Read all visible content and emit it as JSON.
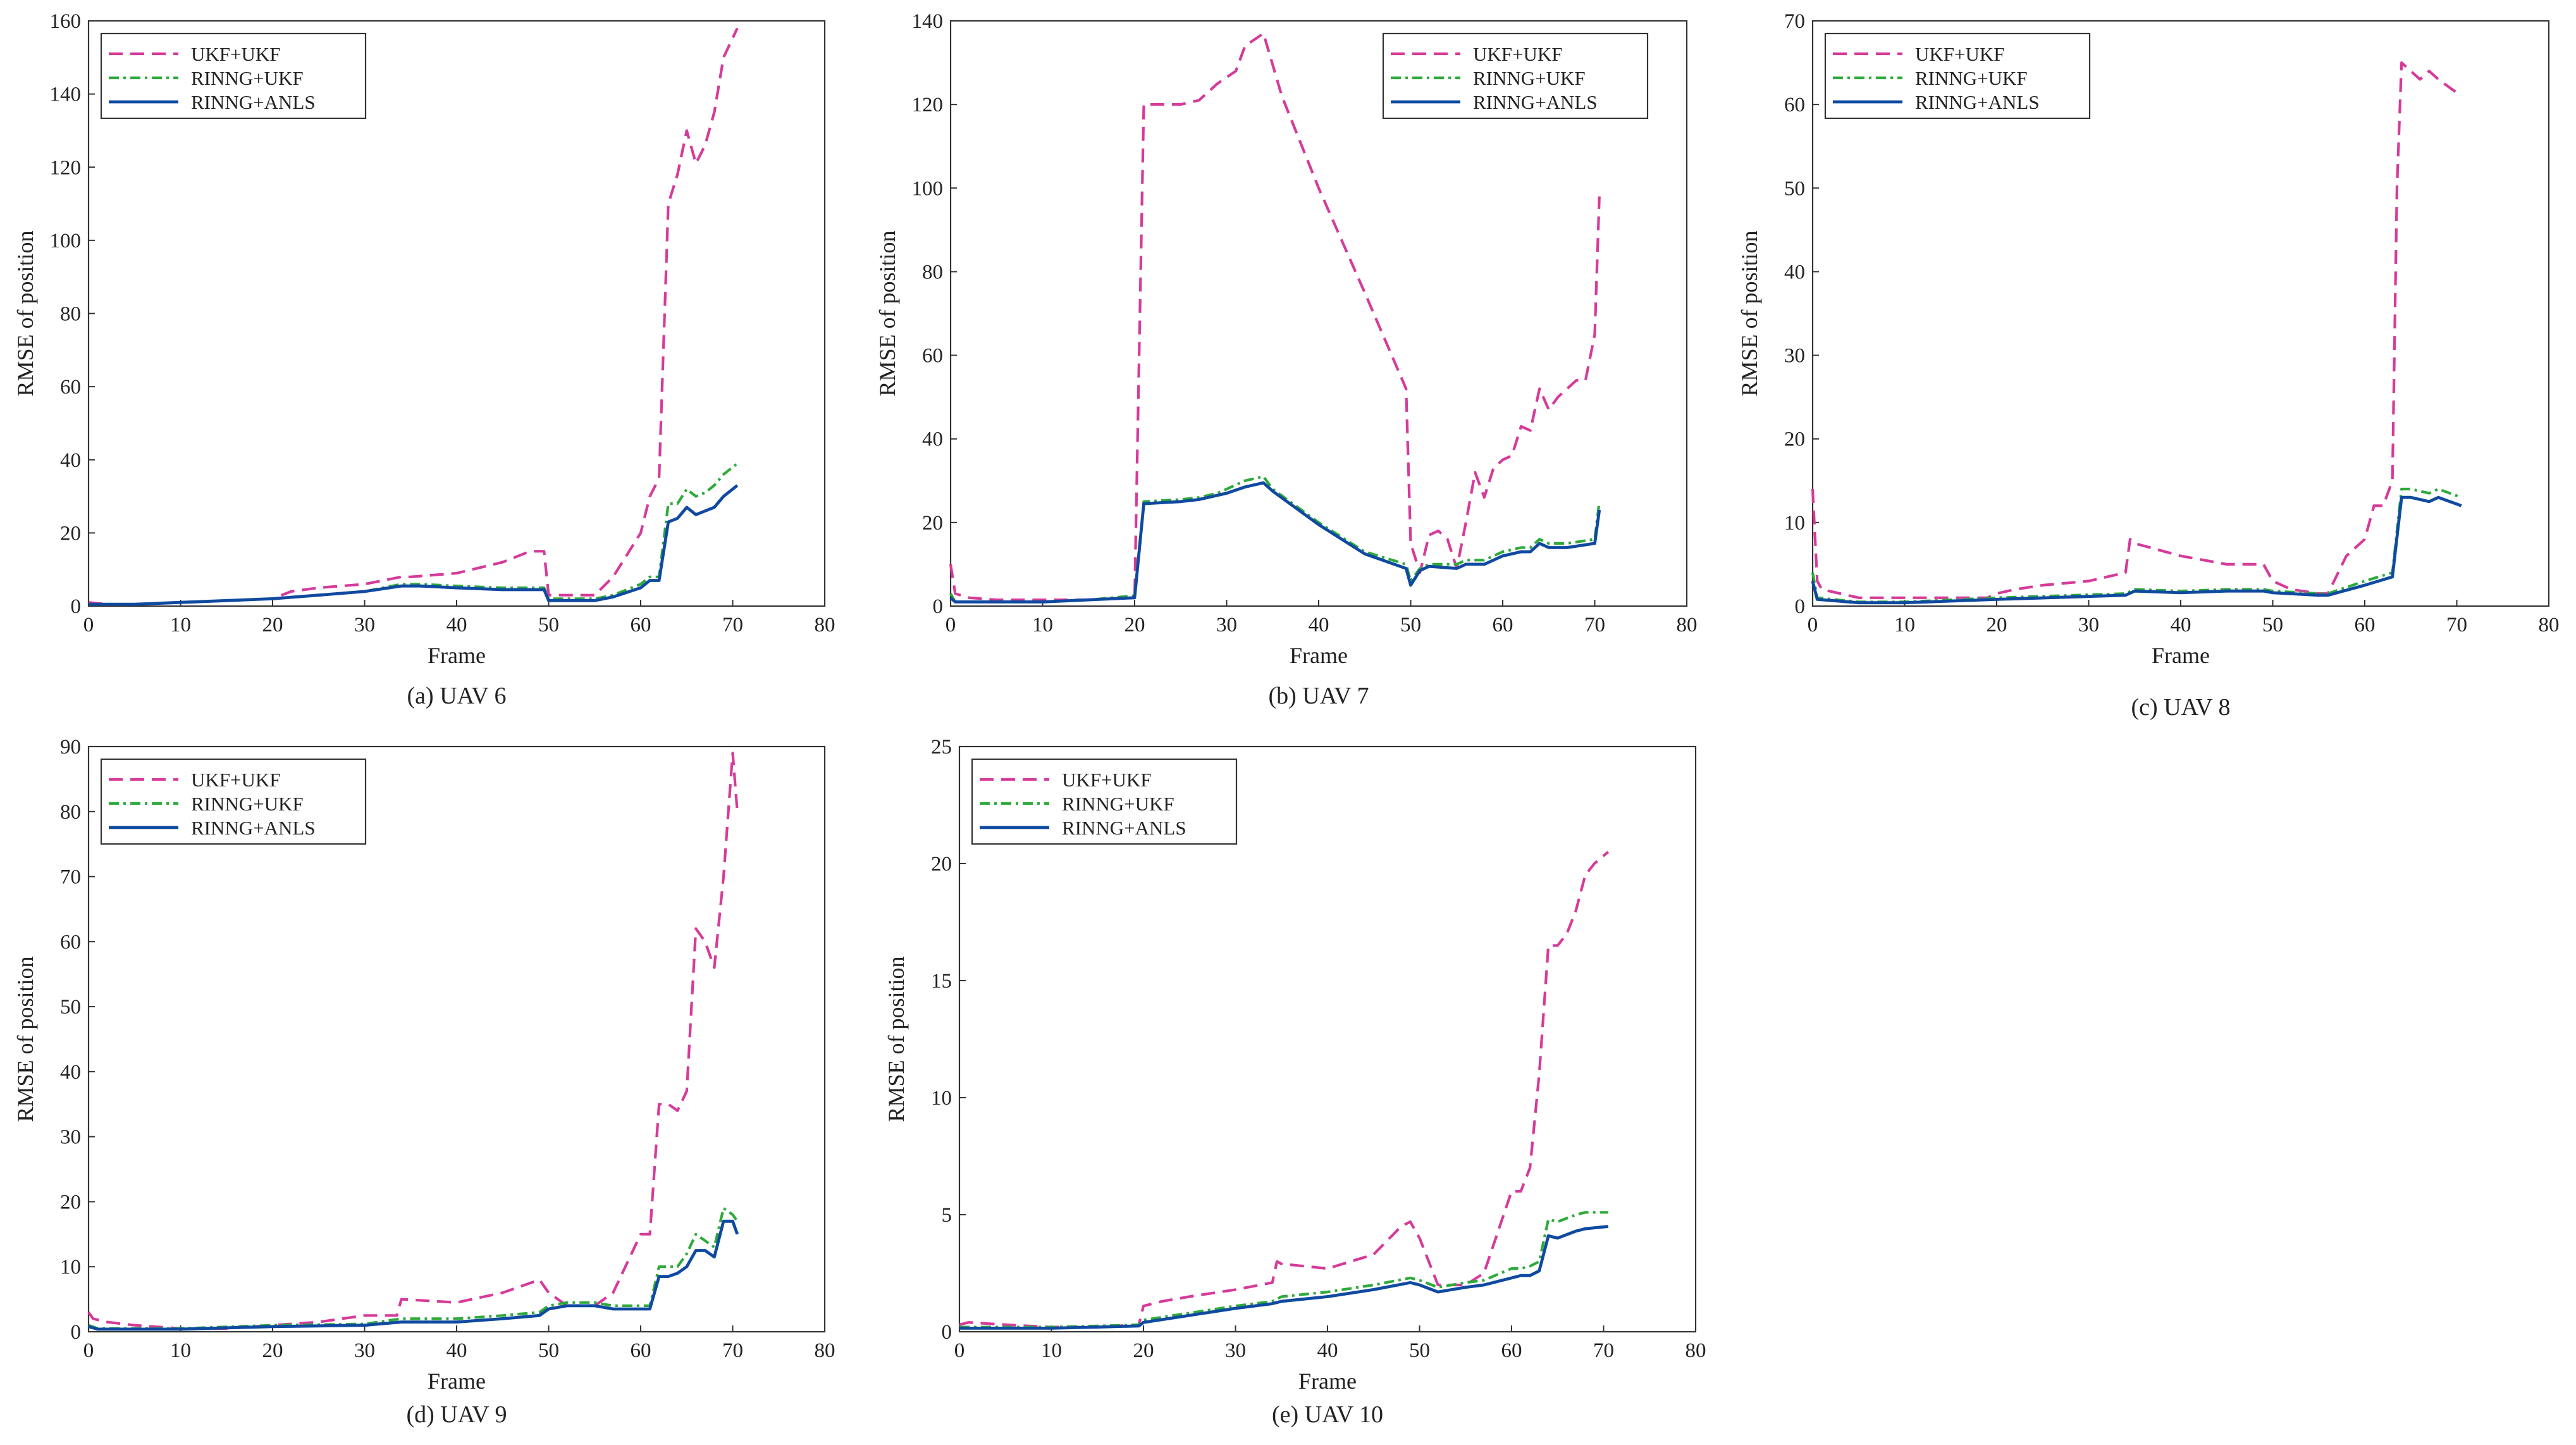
{
  "figure": {
    "panels": [
      {
        "id": "a",
        "caption": "(a) UAV 6"
      },
      {
        "id": "b",
        "caption": "(b) UAV 7"
      },
      {
        "id": "c",
        "caption": "(c) UAV 8"
      },
      {
        "id": "d",
        "caption": "(d) UAV 9"
      },
      {
        "id": "e",
        "caption": "(e) UAV 10"
      }
    ],
    "legend": [
      "UKF+UKF",
      "RINNG+UKF",
      "RINNG+ANLS"
    ],
    "colors": {
      "ukf_ukf": "#d63a9a",
      "rinng_ukf": "#2eaa3a",
      "rinng_anls": "#0f4aa0"
    }
  },
  "chart_data": [
    {
      "type": "line",
      "title": "(a) UAV 6",
      "xlabel": "Frame",
      "ylabel": "RMSE of position",
      "xlim": [
        0,
        80
      ],
      "ylim": [
        0,
        160
      ],
      "xticks": [
        0,
        10,
        20,
        30,
        40,
        50,
        60,
        70,
        80
      ],
      "yticks": [
        0,
        20,
        40,
        60,
        80,
        100,
        120,
        140,
        160
      ],
      "legend": [
        "UKF+UKF",
        "RINNG+UKF",
        "RINNG+ANLS"
      ],
      "series": [
        {
          "name": "UKF+UKF",
          "x": [
            0,
            2,
            5,
            10,
            15,
            20,
            22,
            25,
            30,
            34,
            35,
            40,
            45,
            48,
            49.5,
            50,
            52,
            55,
            57,
            60,
            61,
            62,
            63,
            64,
            65,
            66,
            67,
            68,
            69,
            70.5
          ],
          "y": [
            1,
            0.5,
            0.5,
            1,
            1.5,
            2,
            4,
            5,
            6,
            8,
            8,
            9,
            12,
            15,
            15,
            3,
            3,
            3,
            8,
            20,
            30,
            35,
            110,
            118,
            130,
            121,
            126,
            135,
            150,
            158
          ]
        },
        {
          "name": "RINNG+UKF",
          "x": [
            0,
            5,
            10,
            15,
            20,
            25,
            30,
            34,
            36,
            40,
            45,
            49.5,
            50,
            52,
            55,
            57,
            60,
            61,
            62,
            63,
            64,
            65,
            66,
            67,
            68,
            69,
            70.5
          ],
          "y": [
            0.5,
            0.5,
            1,
            1.5,
            2,
            3,
            4,
            6,
            6,
            5.5,
            5,
            5,
            2,
            2,
            2,
            3,
            6,
            8,
            8,
            28,
            28,
            32,
            30,
            31,
            33,
            36,
            39
          ]
        },
        {
          "name": "RINNG+ANLS",
          "x": [
            0,
            5,
            10,
            15,
            20,
            25,
            30,
            34,
            36,
            40,
            45,
            49.5,
            50,
            52,
            55,
            57,
            60,
            61,
            62,
            63,
            64,
            65,
            66,
            67,
            68,
            69,
            70.5
          ],
          "y": [
            0.5,
            0.5,
            1,
            1.5,
            2,
            3,
            4,
            5.5,
            5.5,
            5,
            4.5,
            4.5,
            1.5,
            1.5,
            1.5,
            2.5,
            5,
            7,
            7,
            23,
            24,
            27,
            25,
            26,
            27,
            30,
            33
          ]
        }
      ]
    },
    {
      "type": "line",
      "title": "(b) UAV 7",
      "xlabel": "Frame",
      "ylabel": "RMSE of position",
      "xlim": [
        0,
        80
      ],
      "ylim": [
        0,
        140
      ],
      "xticks": [
        0,
        10,
        20,
        30,
        40,
        50,
        60,
        70,
        80
      ],
      "yticks": [
        0,
        20,
        40,
        60,
        80,
        100,
        120,
        140
      ],
      "legend": [
        "UKF+UKF",
        "RINNG+UKF",
        "RINNG+ANLS"
      ],
      "series": [
        {
          "name": "UKF+UKF",
          "x": [
            0,
            0.5,
            2,
            5,
            10,
            15,
            20,
            21,
            22,
            25,
            27,
            29,
            31,
            32,
            34,
            36,
            40,
            45,
            49.5,
            50,
            51,
            52,
            53,
            54,
            55,
            56,
            57,
            58,
            59,
            60,
            61,
            62,
            63,
            64,
            65,
            66,
            67,
            68,
            69,
            70,
            70.5
          ],
          "y": [
            10,
            3,
            2,
            1.5,
            1.5,
            1.5,
            2,
            120,
            120,
            120,
            121,
            125,
            128,
            134,
            137,
            122,
            100,
            75,
            52,
            15,
            8,
            17,
            18,
            16,
            9,
            20,
            32,
            26,
            33,
            35,
            36,
            43,
            42,
            52,
            47,
            50,
            52,
            54,
            54,
            65,
            98
          ]
        },
        {
          "name": "RINNG+UKF",
          "x": [
            0,
            0.5,
            5,
            10,
            15,
            20,
            21,
            25,
            27,
            29,
            30,
            32,
            34,
            35,
            40,
            45,
            49.5,
            50,
            51,
            52,
            55,
            56,
            58,
            60,
            62,
            63,
            64,
            65,
            67,
            70,
            70.5
          ],
          "y": [
            3,
            1,
            1,
            1,
            1.5,
            2.5,
            25,
            25.5,
            26,
            27,
            28,
            30,
            31,
            28,
            20,
            13,
            10,
            6,
            9,
            10,
            10,
            11,
            11,
            13,
            14,
            14,
            16,
            15,
            15,
            16,
            25
          ]
        },
        {
          "name": "RINNG+ANLS",
          "x": [
            0,
            0.5,
            5,
            10,
            15,
            20,
            21,
            25,
            27,
            29,
            30,
            32,
            34,
            35,
            40,
            45,
            49.5,
            50,
            51,
            52,
            55,
            56,
            58,
            60,
            62,
            63,
            64,
            65,
            67,
            70,
            70.5
          ],
          "y": [
            2,
            1,
            1,
            1,
            1.5,
            2,
            24.5,
            25,
            25.5,
            26.5,
            27,
            28.5,
            29.5,
            27.5,
            19.5,
            12.5,
            9,
            5,
            8.5,
            9.5,
            9,
            10,
            10,
            12,
            13,
            13,
            15,
            14,
            14,
            15,
            23
          ]
        }
      ]
    },
    {
      "type": "line",
      "title": "(c) UAV 8",
      "xlabel": "Frame",
      "ylabel": "RMSE of position",
      "xlim": [
        0,
        80
      ],
      "ylim": [
        0,
        70
      ],
      "xticks": [
        0,
        10,
        20,
        30,
        40,
        50,
        60,
        70,
        80
      ],
      "yticks": [
        0,
        10,
        20,
        30,
        40,
        50,
        60,
        70
      ],
      "legend": [
        "UKF+UKF",
        "RINNG+UKF",
        "RINNG+ANLS"
      ],
      "series": [
        {
          "name": "UKF+UKF",
          "x": [
            0,
            0.5,
            1,
            3,
            5,
            10,
            15,
            19,
            20,
            22,
            25,
            30,
            34,
            34.5,
            35,
            40,
            45,
            49,
            50,
            52,
            55,
            56,
            58,
            60,
            61,
            62,
            63,
            63.5,
            64,
            65,
            66,
            67,
            68,
            70.5
          ],
          "y": [
            14,
            3,
            2,
            1.5,
            1,
            1,
            1,
            1,
            1.5,
            2,
            2.5,
            3,
            4,
            8,
            7.5,
            6,
            5,
            5,
            3,
            2,
            1.5,
            1.5,
            6,
            8,
            12,
            12,
            15,
            50,
            65,
            64,
            63,
            64,
            63,
            61
          ]
        },
        {
          "name": "RINNG+UKF",
          "x": [
            0,
            0.5,
            5,
            10,
            20,
            34,
            35,
            40,
            45,
            49,
            50,
            55,
            56,
            60,
            63,
            64,
            65,
            67,
            68,
            70.5
          ],
          "y": [
            4,
            1,
            0.5,
            0.5,
            1,
            1.5,
            2,
            1.8,
            2,
            2,
            1.8,
            1.5,
            1.5,
            3,
            4,
            14,
            14,
            13.5,
            14,
            13
          ]
        },
        {
          "name": "RINNG+ANLS",
          "x": [
            0,
            0.5,
            5,
            10,
            20,
            34,
            35,
            40,
            45,
            49,
            50,
            55,
            56,
            60,
            63,
            64,
            65,
            67,
            68,
            70.5
          ],
          "y": [
            3,
            0.8,
            0.4,
            0.4,
            0.8,
            1.3,
            1.8,
            1.6,
            1.8,
            1.8,
            1.6,
            1.3,
            1.3,
            2.5,
            3.5,
            13,
            13,
            12.5,
            13,
            12
          ]
        }
      ]
    },
    {
      "type": "line",
      "title": "(d) UAV 9",
      "xlabel": "Frame",
      "ylabel": "RMSE of position",
      "xlim": [
        0,
        80
      ],
      "ylim": [
        0,
        90
      ],
      "xticks": [
        0,
        10,
        20,
        30,
        40,
        50,
        60,
        70,
        80
      ],
      "yticks": [
        0,
        10,
        20,
        30,
        40,
        50,
        60,
        70,
        80,
        90
      ],
      "legend": [
        "UKF+UKF",
        "RINNG+UKF",
        "RINNG+ANLS"
      ],
      "series": [
        {
          "name": "UKF+UKF",
          "x": [
            0,
            0.5,
            2,
            5,
            10,
            15,
            20,
            25,
            30,
            33.5,
            34,
            40,
            45,
            49,
            50,
            52,
            55,
            57,
            60,
            61,
            62,
            63,
            64,
            65,
            66,
            67,
            68,
            69,
            70,
            70.5
          ],
          "y": [
            3,
            2,
            1.5,
            1,
            0.5,
            0.5,
            1,
            1.5,
            2.5,
            2.5,
            5,
            4.5,
            6,
            8,
            6,
            4,
            4,
            6,
            15,
            15,
            35,
            35,
            34,
            37,
            62,
            60,
            56,
            70,
            89,
            80
          ]
        },
        {
          "name": "RINNG+UKF",
          "x": [
            0,
            1,
            5,
            10,
            20,
            30,
            34,
            40,
            45,
            49,
            50,
            52,
            55,
            57,
            60,
            61,
            62,
            63,
            64,
            65,
            66,
            67,
            68,
            69,
            70,
            70.5
          ],
          "y": [
            1,
            0.5,
            0.5,
            0.5,
            1,
            1.2,
            2,
            2,
            2.5,
            3,
            4,
            4.5,
            4.5,
            4,
            4,
            4,
            10,
            10,
            10,
            12,
            15,
            14,
            13,
            19,
            18,
            17
          ]
        },
        {
          "name": "RINNG+ANLS",
          "x": [
            0,
            1,
            5,
            10,
            20,
            30,
            34,
            40,
            45,
            49,
            50,
            52,
            55,
            57,
            60,
            61,
            62,
            63,
            64,
            65,
            66,
            67,
            68,
            69,
            70,
            70.5
          ],
          "y": [
            0.8,
            0.4,
            0.4,
            0.4,
            0.8,
            1,
            1.5,
            1.5,
            2,
            2.5,
            3.5,
            4,
            4,
            3.5,
            3.5,
            3.5,
            8.5,
            8.5,
            9,
            10,
            12.5,
            12.5,
            11.5,
            17,
            17,
            15
          ]
        }
      ]
    },
    {
      "type": "line",
      "title": "(e) UAV 10",
      "xlabel": "Frame",
      "ylabel": "RMSE of position",
      "xlim": [
        0,
        80
      ],
      "ylim": [
        0,
        25
      ],
      "xticks": [
        0,
        10,
        20,
        30,
        40,
        50,
        60,
        70,
        80
      ],
      "yticks": [
        0,
        5,
        10,
        15,
        20,
        25
      ],
      "legend": [
        "UKF+UKF",
        "RINNG+UKF",
        "RINNG+ANLS"
      ],
      "series": [
        {
          "name": "UKF+UKF",
          "x": [
            0,
            1,
            5,
            10,
            15,
            19.5,
            20,
            22,
            25,
            30,
            34,
            34.5,
            35,
            40,
            45,
            48,
            49,
            50,
            51,
            52,
            55,
            57,
            60,
            61,
            62,
            63,
            64,
            65,
            66,
            67,
            68,
            69,
            70.5
          ],
          "y": [
            0.3,
            0.4,
            0.3,
            0.2,
            0.2,
            0.3,
            1.1,
            1.3,
            1.5,
            1.8,
            2.1,
            3,
            2.9,
            2.7,
            3.3,
            4.5,
            4.7,
            4,
            3,
            2,
            2,
            2.5,
            6,
            6,
            7,
            11,
            16.5,
            16.5,
            17,
            18,
            19.5,
            20,
            20.5
          ]
        },
        {
          "name": "RINNG+UKF",
          "x": [
            0,
            5,
            10,
            15,
            19.5,
            20,
            25,
            30,
            34,
            35,
            40,
            45,
            49,
            50,
            52,
            55,
            57,
            60,
            61,
            62,
            63,
            64,
            65,
            67,
            68,
            70.5
          ],
          "y": [
            0.2,
            0.2,
            0.2,
            0.25,
            0.3,
            0.5,
            0.8,
            1.1,
            1.3,
            1.5,
            1.7,
            2,
            2.3,
            2.2,
            1.9,
            2.1,
            2.2,
            2.7,
            2.7,
            2.8,
            3,
            4.8,
            4.7,
            5,
            5.1,
            5.1
          ]
        },
        {
          "name": "RINNG+ANLS",
          "x": [
            0,
            5,
            10,
            15,
            19.5,
            20,
            25,
            30,
            34,
            35,
            40,
            45,
            49,
            50,
            52,
            55,
            57,
            60,
            61,
            62,
            63,
            64,
            65,
            67,
            68,
            70.5
          ],
          "y": [
            0.15,
            0.15,
            0.15,
            0.2,
            0.25,
            0.4,
            0.7,
            1,
            1.2,
            1.3,
            1.5,
            1.8,
            2.1,
            2,
            1.7,
            1.9,
            2,
            2.3,
            2.4,
            2.4,
            2.6,
            4.1,
            4,
            4.3,
            4.4,
            4.5
          ]
        }
      ]
    }
  ]
}
